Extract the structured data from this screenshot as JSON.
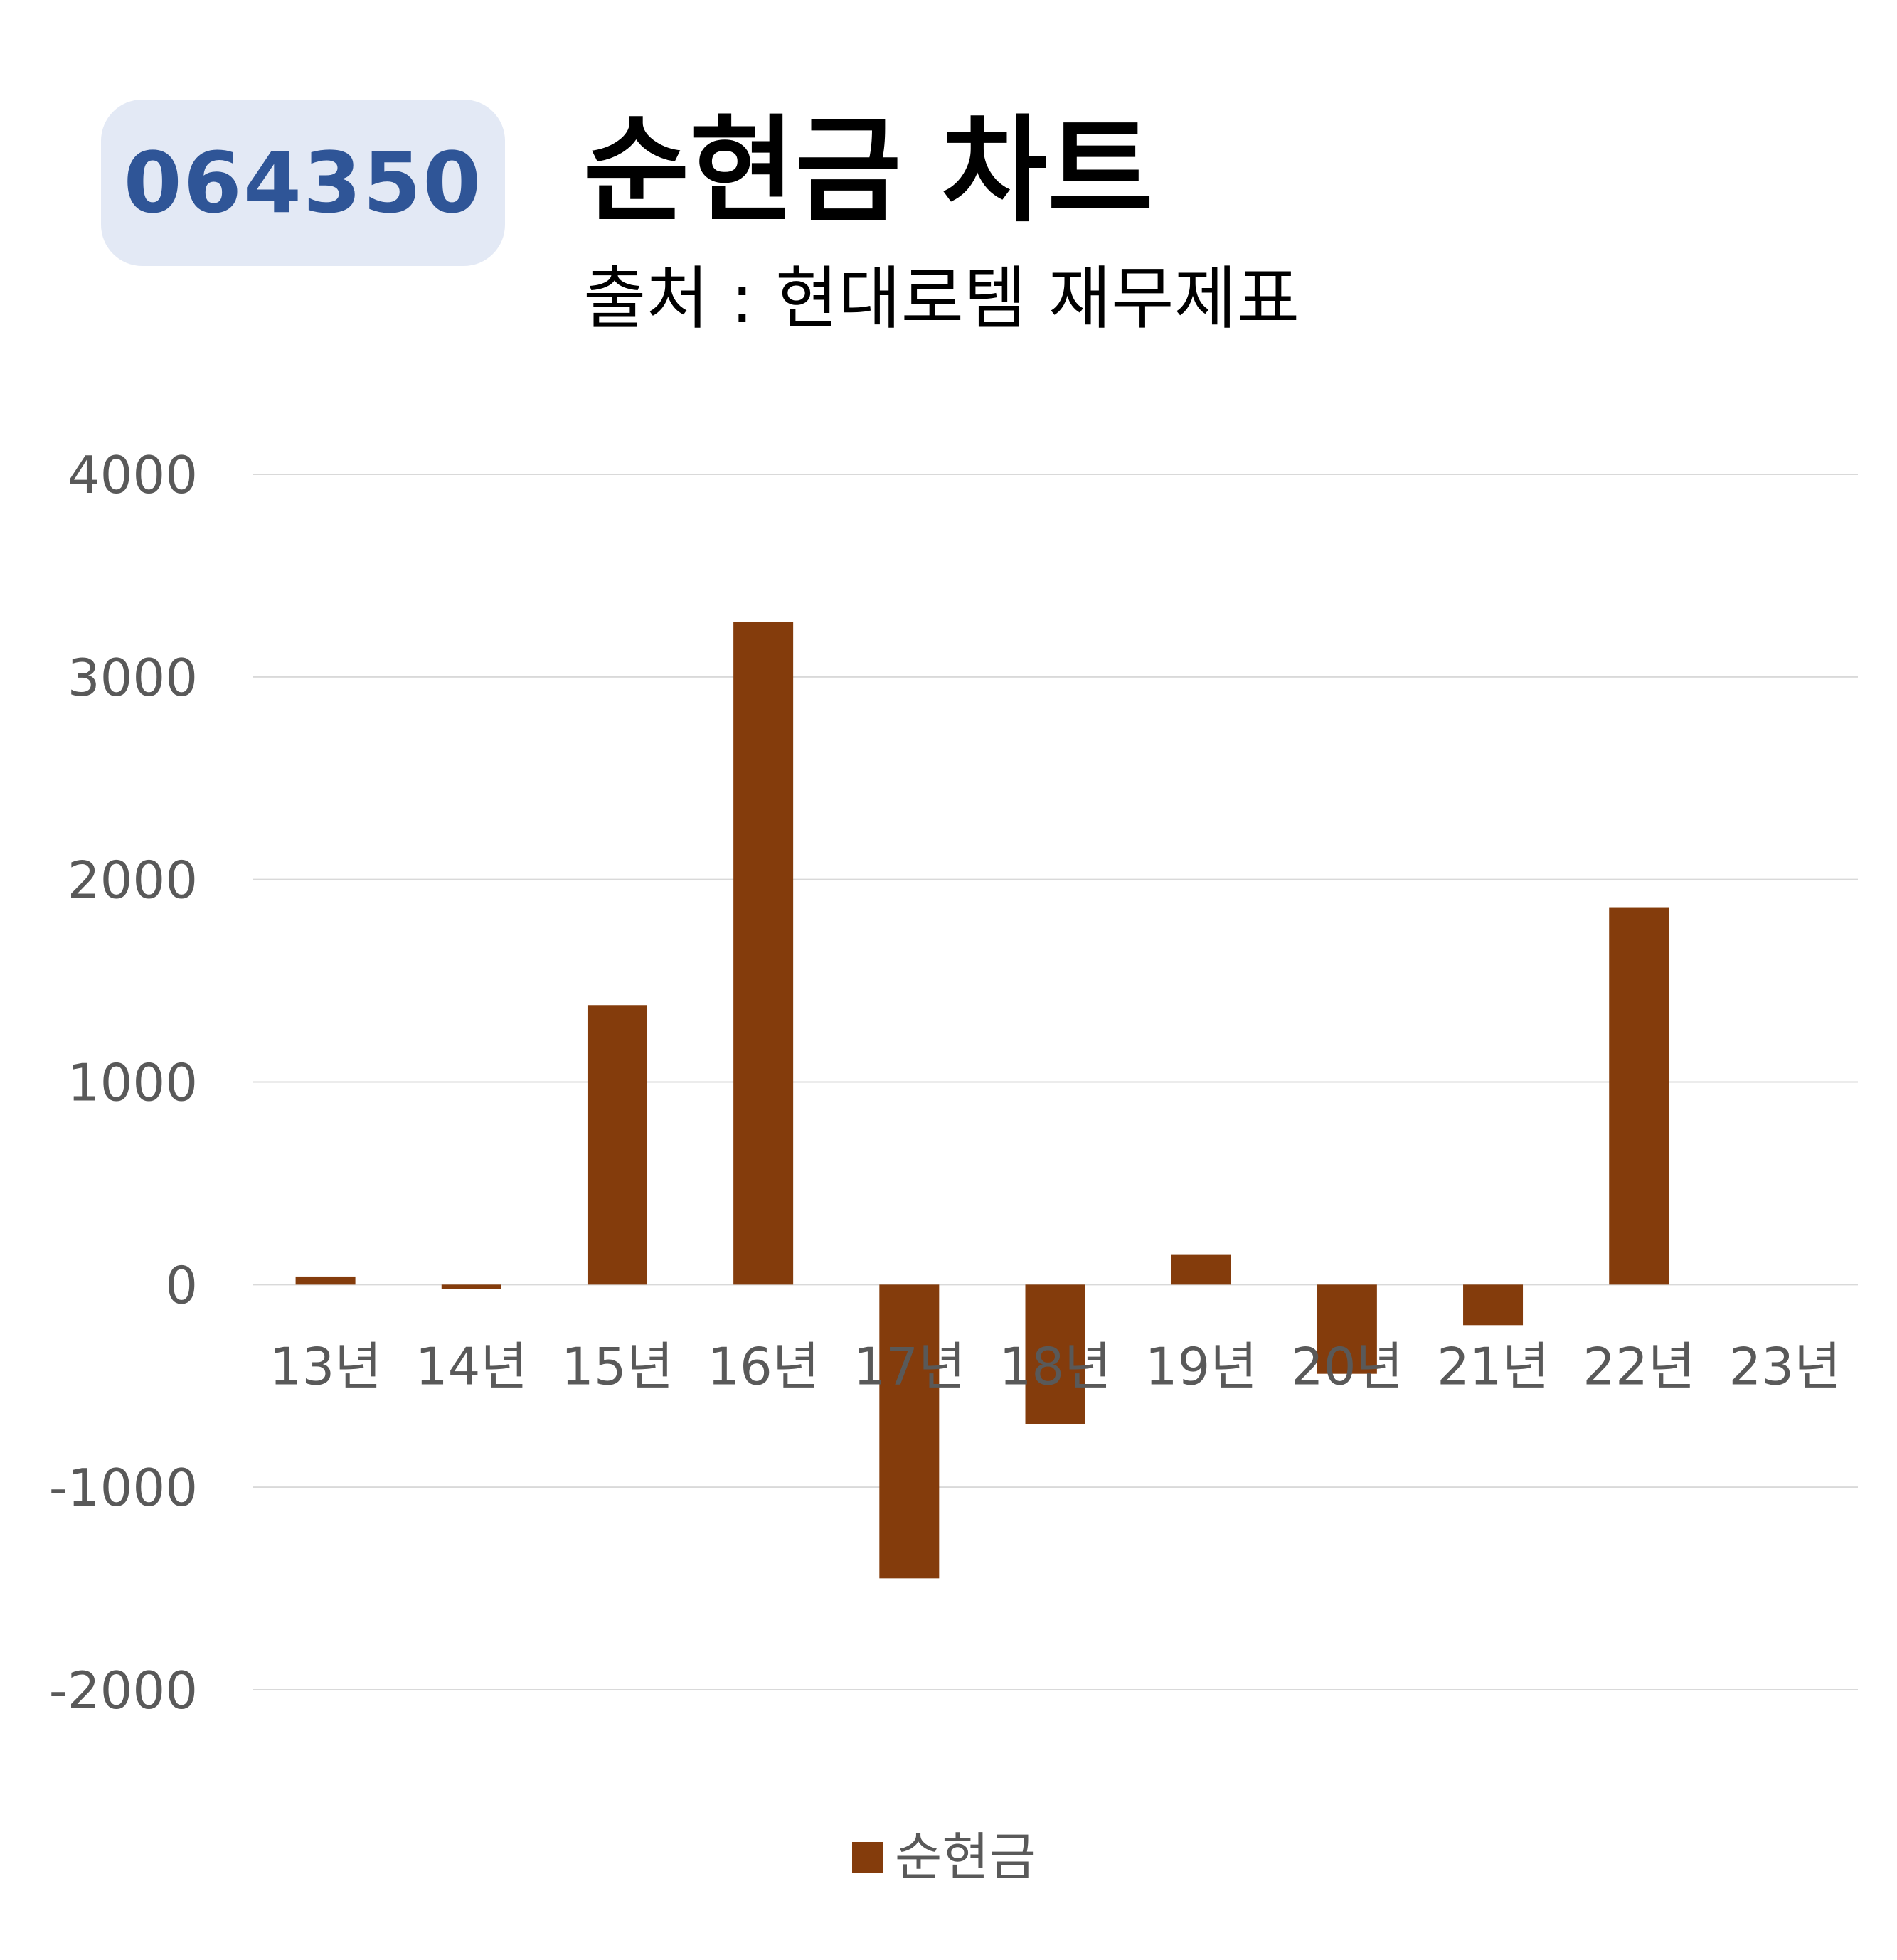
{
  "header": {
    "code": "064350",
    "title": "순현금 차트",
    "subtitle": "출처 : 현대로템 재무제표"
  },
  "colors": {
    "bar": "#843c0c",
    "badge_bg": "#e3e9f5",
    "badge_text": "#2f5597",
    "grid": "#d9d9d9",
    "axis_text": "#595959"
  },
  "chart_data": {
    "type": "bar",
    "title": "순현금 차트",
    "subtitle": "출처 : 현대로템 재무제표",
    "categories": [
      "13년",
      "14년",
      "15년",
      "16년",
      "17년",
      "18년",
      "19년",
      "20년",
      "21년",
      "22년",
      "23년"
    ],
    "series": [
      {
        "name": "순현금",
        "values": [
          40,
          -20,
          1380,
          3270,
          -1450,
          -690,
          150,
          -440,
          -200,
          1860,
          null
        ]
      }
    ],
    "ylim": [
      -2000,
      4000
    ],
    "yticks": [
      4000,
      3000,
      2000,
      1000,
      0,
      -1000,
      -2000
    ],
    "grid": true,
    "legend": "bottom"
  }
}
